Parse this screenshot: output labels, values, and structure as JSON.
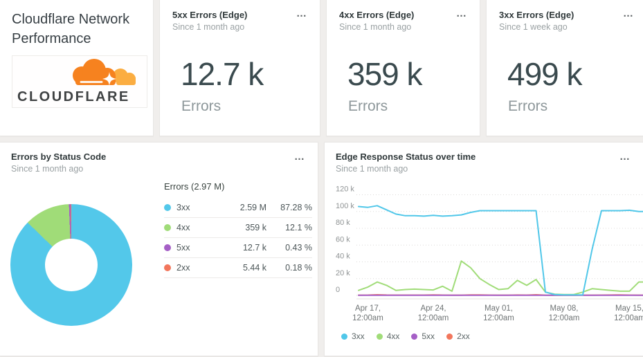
{
  "menu_icon": "…",
  "brand_card": {
    "title": "Cloudflare Network Performance",
    "logo_text": "CLOUDFLARE",
    "logo_colors": {
      "cloud_main": "#F6821F",
      "cloud_back": "#FBAD41",
      "text": "#3F4243"
    }
  },
  "stat_cards": [
    {
      "title": "5xx Errors (Edge)",
      "subtitle": "Since 1 month ago",
      "value": "12.7 k",
      "unit": "Errors"
    },
    {
      "title": "4xx Errors (Edge)",
      "subtitle": "Since 1 month ago",
      "value": "359 k",
      "unit": "Errors"
    },
    {
      "title": "3xx Errors (Edge)",
      "subtitle": "Since 1 week ago",
      "value": "499 k",
      "unit": "Errors"
    }
  ],
  "donut_panel": {
    "title": "Errors by Status Code",
    "subtitle": "Since 1 month ago",
    "table": {
      "header": "Errors (2.97 M)",
      "rows": [
        {
          "label": "3xx",
          "value": "2.59 M",
          "percent": "87.28 %",
          "color": "#53c8ea"
        },
        {
          "label": "4xx",
          "value": "359 k",
          "percent": "12.1 %",
          "color": "#a0dc78"
        },
        {
          "label": "5xx",
          "value": "12.7 k",
          "percent": "0.43 %",
          "color": "#a55fc6"
        },
        {
          "label": "2xx",
          "value": "5.44 k",
          "percent": "0.18 %",
          "color": "#f2765c"
        }
      ]
    }
  },
  "line_panel": {
    "title": "Edge Response Status over time",
    "subtitle": "Since 1 month ago"
  },
  "chart_data": [
    {
      "type": "pie",
      "title": "Errors by Status Code",
      "donut": true,
      "total_label": "Errors (2.97 M)",
      "labels": [
        "3xx",
        "4xx",
        "5xx",
        "2xx"
      ],
      "values": [
        2590000,
        359000,
        12700,
        5440
      ],
      "percents": [
        87.28,
        12.1,
        0.43,
        0.18
      ],
      "colors": [
        "#53c8ea",
        "#a0dc78",
        "#a55fc6",
        "#f2765c"
      ],
      "start_angle": "top",
      "direction": "clockwise"
    },
    {
      "type": "line",
      "title": "Edge Response Status over time",
      "x_range": [
        "Apr 16, 12:00am",
        "May 16, 12:00am"
      ],
      "x_interval": "1 day",
      "y_unit": "errors (thousands)",
      "ylim": [
        0,
        124
      ],
      "y_ticks": [
        0,
        20,
        40,
        60,
        80,
        100,
        120
      ],
      "y_tick_suffix": " k",
      "grid": "horizontal-dotted",
      "legend_position": "bottom",
      "x_ticks": [
        {
          "index": 1,
          "date": "Apr 17,",
          "time": "12:00am"
        },
        {
          "index": 8,
          "date": "Apr 24,",
          "time": "12:00am"
        },
        {
          "index": 15,
          "date": "May 01,",
          "time": "12:00am"
        },
        {
          "index": 22,
          "date": "May 08,",
          "time": "12:00am"
        },
        {
          "index": 29,
          "date": "May 15,",
          "time": "12:00am"
        }
      ],
      "series": [
        {
          "name": "3xx",
          "color": "#50c7e9",
          "values": [
            106,
            105,
            107,
            102,
            97,
            95,
            95,
            94.5,
            95.5,
            94.5,
            95,
            96,
            99,
            101,
            101,
            101,
            101,
            101,
            101,
            101,
            4,
            1,
            0.7,
            0.7,
            0.7,
            55,
            101,
            101,
            101,
            101.5,
            100
          ]
        },
        {
          "name": "4xx",
          "color": "#a0dc78",
          "values": [
            6,
            10,
            16,
            12,
            6,
            7,
            7.5,
            7,
            6.5,
            11,
            5,
            41,
            33,
            20,
            13,
            7,
            8,
            18,
            12,
            19,
            4,
            1.5,
            1,
            1,
            4,
            8,
            7,
            6,
            5,
            5,
            16
          ]
        },
        {
          "name": "5xx",
          "color": "#a55fc6",
          "values": [
            0.15,
            0.15,
            0.15,
            0.15,
            0.15,
            0.15,
            0.15,
            0.15,
            0.15,
            0.15,
            0.15,
            0.15,
            0.15,
            0.15,
            0.15,
            0.15,
            0.15,
            0.15,
            0.15,
            0.15,
            0.15,
            0.15,
            0.15,
            0.15,
            0.15,
            0.15,
            0.15,
            0.15,
            0.15,
            0.15,
            0.15
          ]
        },
        {
          "name": "2xx",
          "color": "#f2765c",
          "values": [
            0.3,
            0.4,
            0.8,
            0.5,
            0.4,
            0.4,
            0.4,
            0.4,
            0.7,
            0.4,
            0.3,
            0.3,
            0.6,
            0.6,
            0.4,
            0.3,
            0.3,
            0.5,
            0.4,
            0.8,
            0.3,
            0.2,
            0.2,
            0.2,
            0.3,
            0.3,
            0.4,
            0.5,
            0.7,
            0.4,
            0.3
          ]
        }
      ]
    }
  ]
}
